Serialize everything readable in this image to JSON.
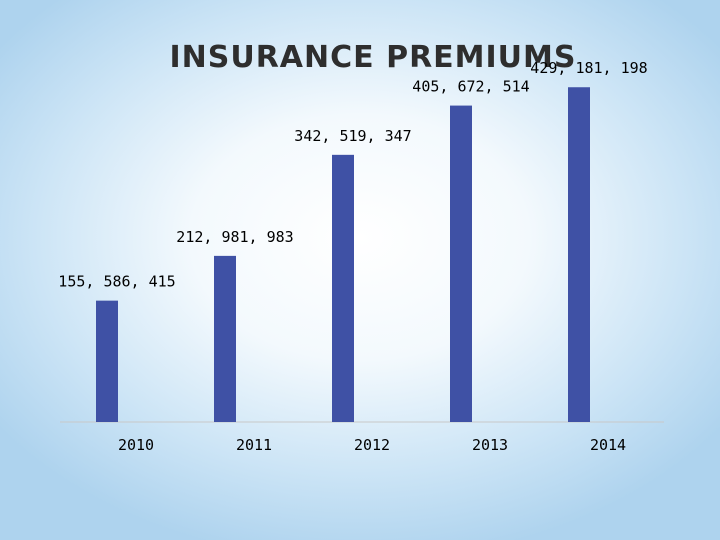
{
  "slide": {
    "title": "INSURANCE PREMIUMS"
  },
  "colors": {
    "bar": "#3f51a5",
    "axis": "#c8c8c8"
  },
  "chart_data": {
    "type": "bar",
    "title": "INSURANCE PREMIUMS",
    "xlabel": "",
    "ylabel": "",
    "ylim": [
      0,
      500000000
    ],
    "grid": false,
    "legend": "none",
    "categories": [
      "2010",
      "2011",
      "2012",
      "2013",
      "2014"
    ],
    "values": [
      155586415,
      212981983,
      342519347,
      405672514,
      429181198
    ],
    "data_labels": [
      "155, 586, 415",
      "212, 981, 983",
      "342, 519, 347",
      "405, 672, 514",
      "429, 181, 198"
    ]
  }
}
